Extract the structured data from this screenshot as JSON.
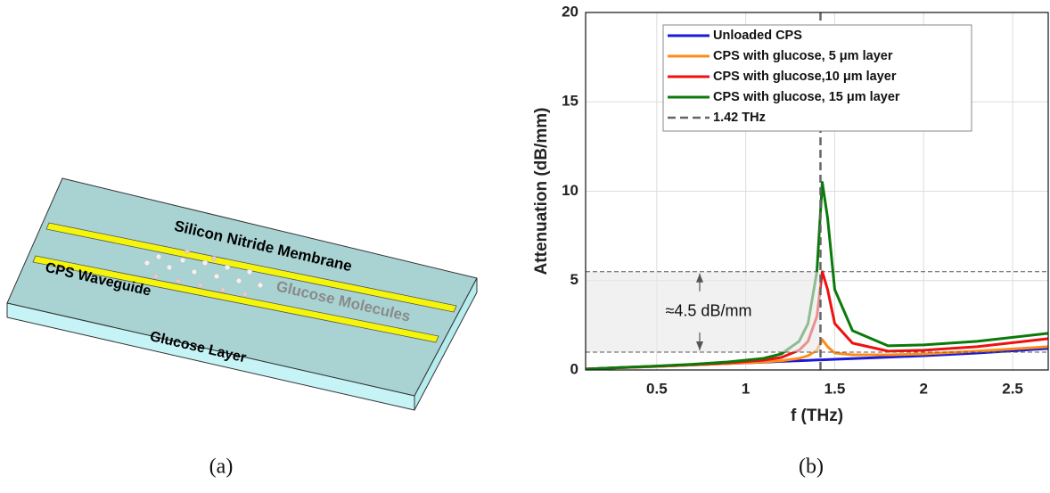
{
  "diagram": {
    "labels": [
      "Silicon Nitride Membrane",
      "CPS Waveguide",
      "Glucose Molecules",
      "Glucose Layer"
    ],
    "caption": "(a)"
  },
  "chart_data": {
    "type": "line",
    "caption": "(b)",
    "xlabel": "f (THz)",
    "ylabel": "Attenuation (dB/mm)",
    "xlim": [
      0.1,
      2.7
    ],
    "ylim": [
      0,
      20
    ],
    "xticks": [
      0.5,
      1,
      1.5,
      2,
      2.5
    ],
    "yticks": [
      0,
      5,
      10,
      15,
      20
    ],
    "grid": true,
    "legend": "top",
    "x": [
      0.1,
      0.3,
      0.5,
      0.7,
      0.9,
      1.1,
      1.2,
      1.3,
      1.35,
      1.4,
      1.43,
      1.46,
      1.5,
      1.6,
      1.8,
      2.0,
      2.3,
      2.7
    ],
    "series": [
      {
        "name": "Unloaded CPS",
        "color": "#1a1ad6",
        "values": [
          0.05,
          0.13,
          0.2,
          0.28,
          0.36,
          0.44,
          0.48,
          0.52,
          0.54,
          0.56,
          0.57,
          0.58,
          0.6,
          0.64,
          0.72,
          0.8,
          0.95,
          1.2
        ]
      },
      {
        "name": "CPS with glucose, 5 μm layer",
        "color": "#ff8c1a",
        "values": [
          0.05,
          0.13,
          0.2,
          0.28,
          0.36,
          0.45,
          0.52,
          0.65,
          0.8,
          1.1,
          1.7,
          1.3,
          0.95,
          0.85,
          0.85,
          0.9,
          1.05,
          1.3
        ]
      },
      {
        "name": "CPS with glucose,10 μm layer",
        "color": "#ee1111",
        "values": [
          0.05,
          0.14,
          0.21,
          0.3,
          0.4,
          0.55,
          0.7,
          1.1,
          1.6,
          3.0,
          5.5,
          4.5,
          2.6,
          1.5,
          1.05,
          1.1,
          1.3,
          1.75
        ]
      },
      {
        "name": "CPS with glucose, 15 μm layer",
        "color": "#0a7a0a",
        "values": [
          0.05,
          0.14,
          0.22,
          0.32,
          0.45,
          0.65,
          0.9,
          1.6,
          2.6,
          5.5,
          10.5,
          8.5,
          4.5,
          2.2,
          1.35,
          1.4,
          1.6,
          2.05
        ]
      }
    ],
    "vline": {
      "name": "1.42 THz",
      "x": 1.42,
      "color": "#666666"
    },
    "band": [
      1.0,
      5.5
    ],
    "annotation": "≈4.5 dB/mm"
  }
}
